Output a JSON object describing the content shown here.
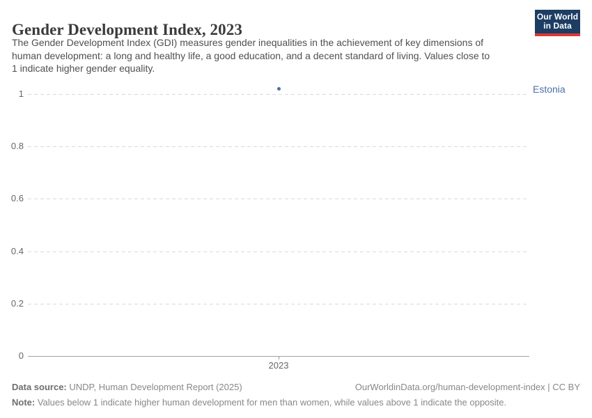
{
  "header": {
    "title": "Gender Development Index, 2023",
    "subtitle_lines": [
      "The Gender Development Index (GDI) measures gender inequalities in the achievement of key dimensions of",
      "human development: a long and healthy life, a good education, and a decent standard of living. Values close to",
      "1 indicate higher gender equality."
    ],
    "logo": {
      "line1": "Our World",
      "line2": "in Data",
      "bg_color": "#1d3d63",
      "bar_color": "#dc3a32"
    }
  },
  "chart_data": {
    "type": "scatter",
    "title": "Gender Development Index, 2023",
    "x": [
      2023
    ],
    "x_tick_labels": [
      "2023"
    ],
    "series": [
      {
        "name": "Estonia",
        "values": [
          1.02
        ],
        "color": "#4c6fa9"
      }
    ],
    "y_ticks": [
      0,
      0.2,
      0.4,
      0.6,
      0.8,
      1
    ],
    "ylim": [
      0,
      1.05
    ],
    "xlabel": "",
    "ylabel": "",
    "grid": "horizontal dashed",
    "legend": "entity label right of plot",
    "gridline_color": "#d9d9d9",
    "axis_color": "#a3a3a3",
    "tick_label_color": "#666666"
  },
  "footer": {
    "data_source_label": "Data source:",
    "data_source": " UNDP, Human Development Report (2025)",
    "citation": "OurWorldinData.org/human-development-index | CC BY",
    "note_label": "Note:",
    "note": " Values below 1 indicate higher human development for men than women, while values above 1 indicate the opposite."
  }
}
